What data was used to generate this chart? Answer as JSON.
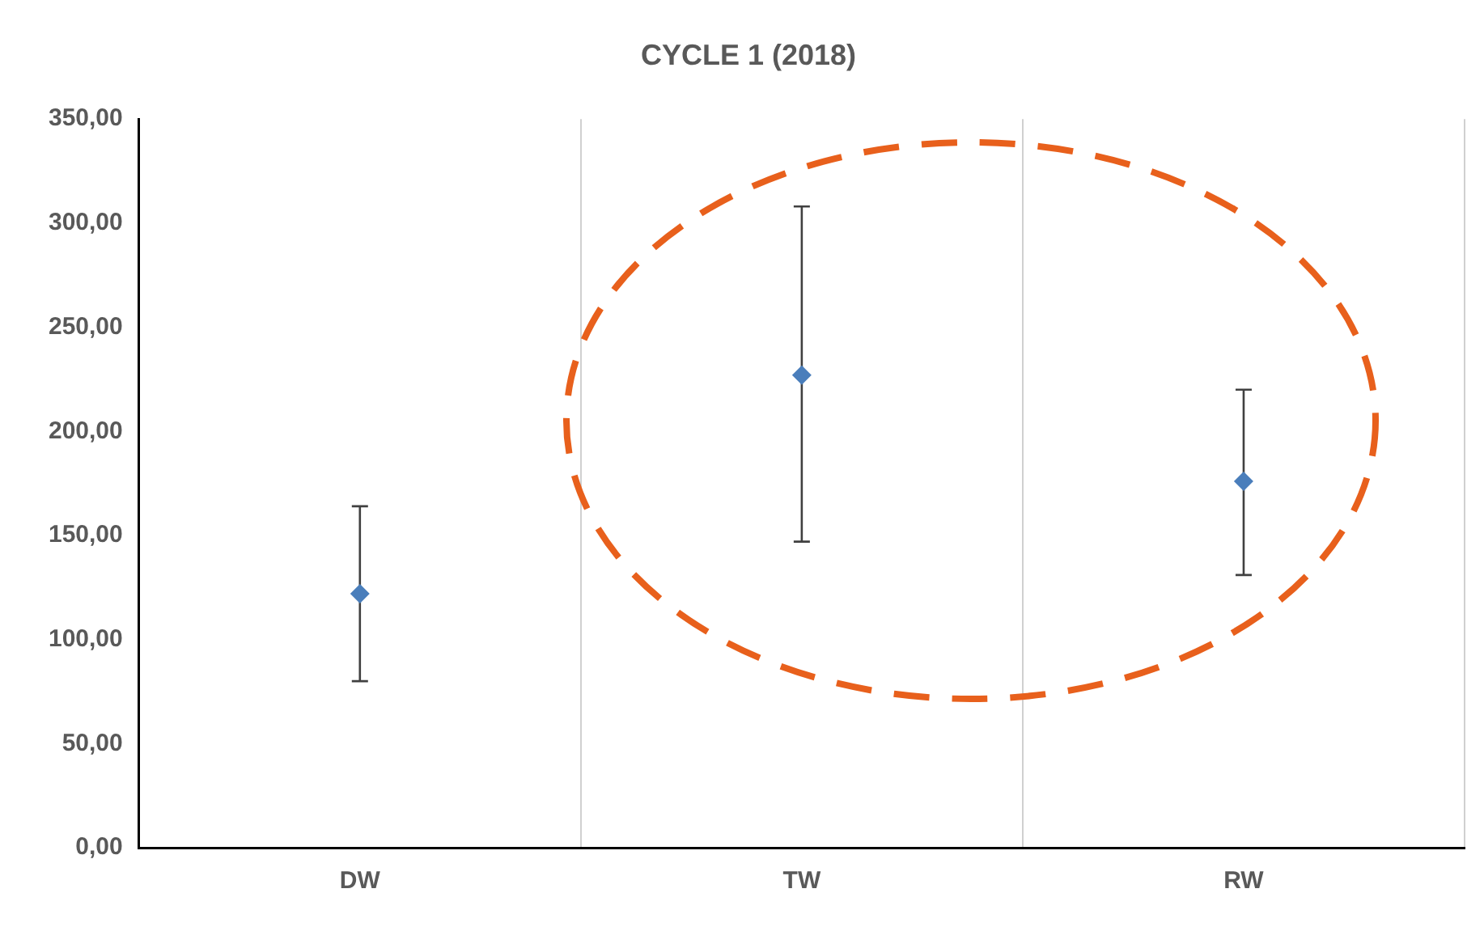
{
  "chart_data": {
    "type": "scatter",
    "title": "CYCLE 1 (2018)",
    "categories": [
      "DW",
      "TW",
      "RW"
    ],
    "values": [
      122,
      227,
      176
    ],
    "errors": [
      [
        80,
        164
      ],
      [
        147,
        308
      ],
      [
        131,
        220
      ]
    ],
    "color": "#4a7ebb",
    "marker": "diamond",
    "grid": "x",
    "legend": false,
    "ylim": [
      0,
      350
    ],
    "yticks": [
      {
        "value": 0,
        "label": "0,00"
      },
      {
        "value": 50,
        "label": "50,00"
      },
      {
        "value": 100,
        "label": "100,00"
      },
      {
        "value": 150,
        "label": "150,00"
      },
      {
        "value": 200,
        "label": "200,00"
      },
      {
        "value": 250,
        "label": "250,00"
      },
      {
        "value": 300,
        "label": "300,00"
      },
      {
        "value": 350,
        "label": "350,00"
      }
    ]
  }
}
